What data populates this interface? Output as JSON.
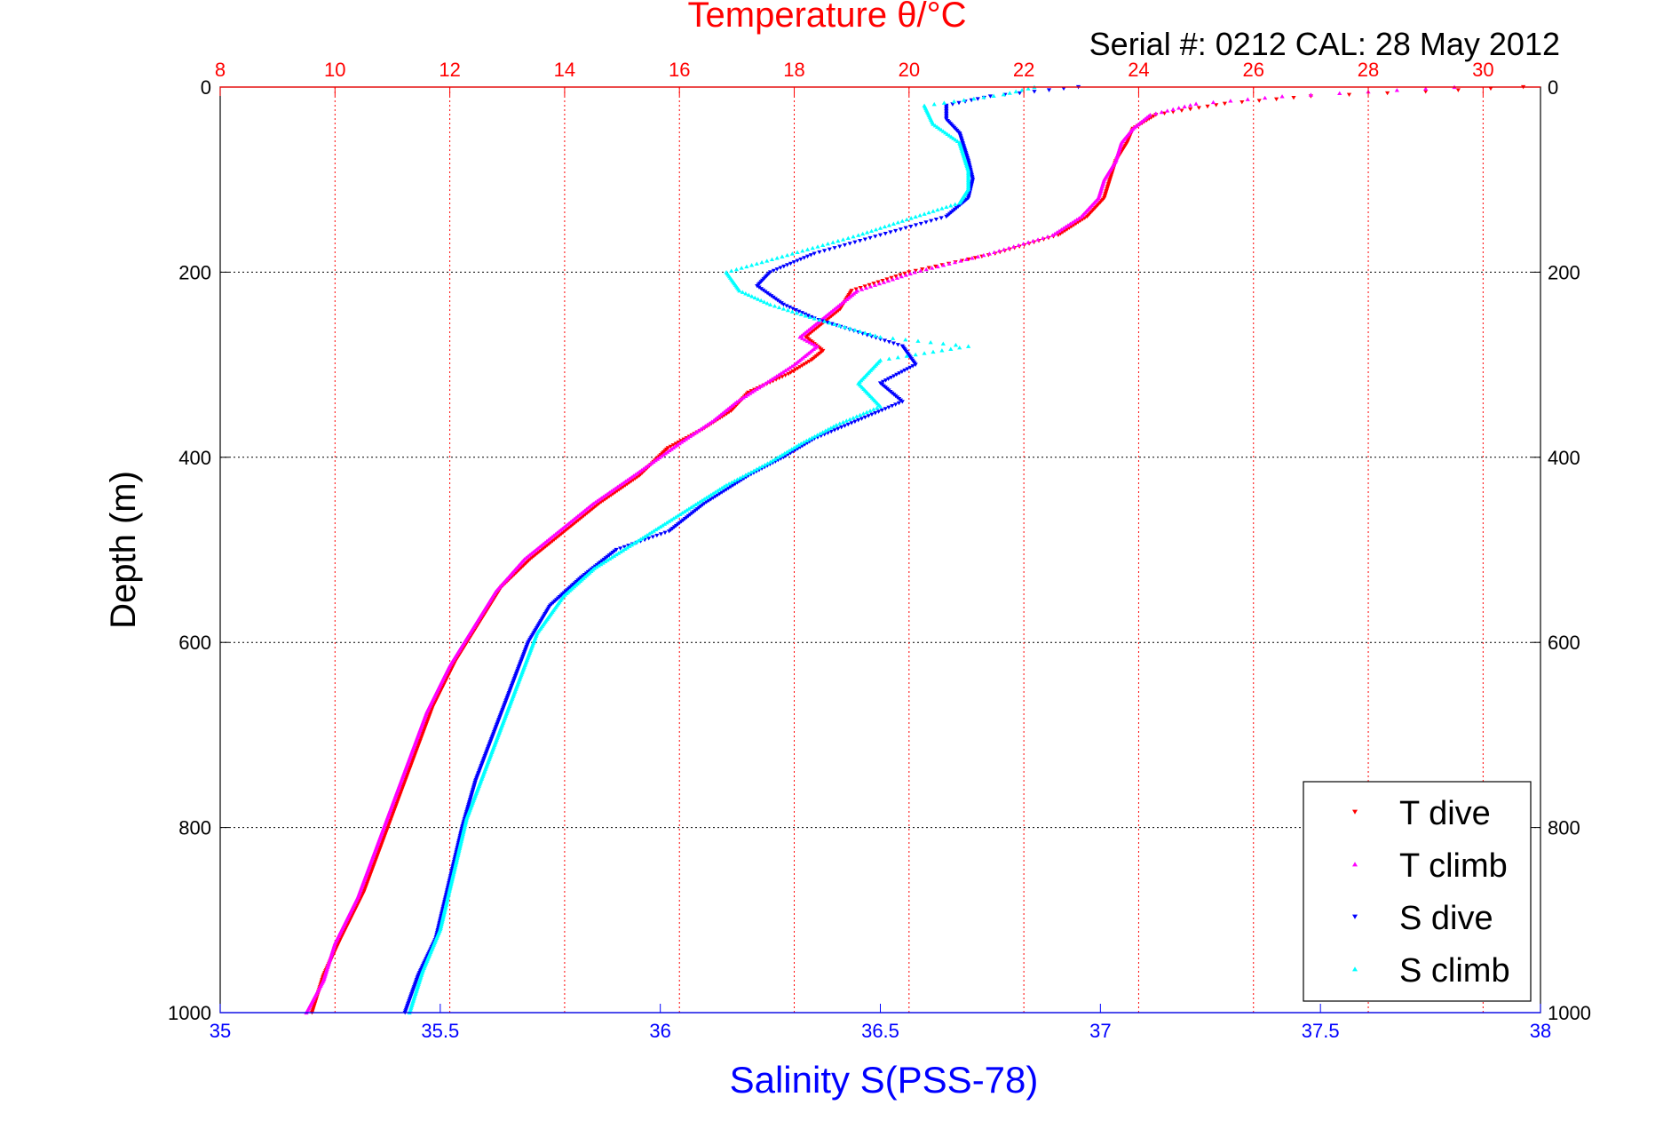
{
  "chart_data": {
    "type": "scatter",
    "title": "Temperature θ/°C",
    "subtitle": "Serial #: 0212  CAL: 28 May 2012",
    "ylabel": "Depth (m)",
    "xlabel_bottom": "Salinity S(PSS-78)",
    "ylim": [
      0,
      1000
    ],
    "y_reversed": true,
    "y_ticks": [
      0,
      200,
      400,
      600,
      800,
      1000
    ],
    "temperature_axis": {
      "position": "top",
      "range": [
        8,
        31
      ],
      "ticks": [
        8,
        10,
        12,
        14,
        16,
        18,
        20,
        22,
        24,
        26,
        28,
        30
      ],
      "color": "#ff0000"
    },
    "salinity_axis": {
      "position": "bottom",
      "range": [
        35,
        38
      ],
      "ticks": [
        35,
        35.5,
        36,
        36.5,
        37,
        37.5,
        38
      ],
      "color": "#0000ff"
    },
    "grid": true,
    "legend_position": "bottom-right",
    "series": [
      {
        "name": "T dive",
        "axis": "temperature",
        "color": "#ff0000",
        "marker": "triangle-down",
        "points": [
          [
            30.7,
            0
          ],
          [
            29.0,
            5
          ],
          [
            27.0,
            10
          ],
          [
            25.5,
            18
          ],
          [
            24.3,
            30
          ],
          [
            23.9,
            45
          ],
          [
            23.8,
            60
          ],
          [
            23.6,
            80
          ],
          [
            23.5,
            100
          ],
          [
            23.4,
            120
          ],
          [
            23.1,
            140
          ],
          [
            22.6,
            160
          ],
          [
            21.5,
            180
          ],
          [
            20.0,
            200
          ],
          [
            19.0,
            220
          ],
          [
            18.8,
            240
          ],
          [
            18.5,
            255
          ],
          [
            18.2,
            270
          ],
          [
            18.5,
            285
          ],
          [
            18.3,
            295
          ],
          [
            17.9,
            310
          ],
          [
            17.2,
            330
          ],
          [
            16.9,
            350
          ],
          [
            16.4,
            370
          ],
          [
            15.8,
            390
          ],
          [
            15.3,
            420
          ],
          [
            14.6,
            450
          ],
          [
            14.0,
            480
          ],
          [
            13.4,
            510
          ],
          [
            12.9,
            540
          ],
          [
            12.5,
            580
          ],
          [
            12.1,
            620
          ],
          [
            11.7,
            670
          ],
          [
            11.4,
            720
          ],
          [
            11.1,
            770
          ],
          [
            10.8,
            820
          ],
          [
            10.5,
            870
          ],
          [
            10.1,
            920
          ],
          [
            9.8,
            960
          ],
          [
            9.6,
            1000
          ]
        ]
      },
      {
        "name": "T climb",
        "axis": "temperature",
        "color": "#ff00ff",
        "marker": "triangle-up",
        "points": [
          [
            29.5,
            0
          ],
          [
            28.0,
            5
          ],
          [
            26.5,
            10
          ],
          [
            25.0,
            18
          ],
          [
            24.2,
            30
          ],
          [
            23.9,
            45
          ],
          [
            23.7,
            60
          ],
          [
            23.6,
            80
          ],
          [
            23.4,
            100
          ],
          [
            23.3,
            120
          ],
          [
            23.0,
            140
          ],
          [
            22.5,
            160
          ],
          [
            21.4,
            180
          ],
          [
            20.1,
            200
          ],
          [
            19.1,
            220
          ],
          [
            18.7,
            240
          ],
          [
            18.4,
            255
          ],
          [
            18.1,
            270
          ],
          [
            18.4,
            280
          ],
          [
            18.0,
            300
          ],
          [
            17.5,
            320
          ],
          [
            17.0,
            340
          ],
          [
            16.6,
            360
          ],
          [
            16.0,
            385
          ],
          [
            15.2,
            420
          ],
          [
            14.5,
            450
          ],
          [
            13.9,
            480
          ],
          [
            13.3,
            510
          ],
          [
            12.8,
            545
          ],
          [
            12.4,
            585
          ],
          [
            12.0,
            625
          ],
          [
            11.6,
            675
          ],
          [
            11.3,
            725
          ],
          [
            11.0,
            775
          ],
          [
            10.7,
            825
          ],
          [
            10.4,
            875
          ],
          [
            10.0,
            925
          ],
          [
            9.8,
            965
          ],
          [
            9.5,
            1000
          ]
        ]
      },
      {
        "name": "S dive",
        "axis": "salinity",
        "color": "#0000ff",
        "marker": "triangle-down",
        "points": [
          [
            36.95,
            0
          ],
          [
            36.85,
            5
          ],
          [
            36.75,
            10
          ],
          [
            36.65,
            20
          ],
          [
            36.65,
            35
          ],
          [
            36.68,
            50
          ],
          [
            36.7,
            80
          ],
          [
            36.71,
            100
          ],
          [
            36.7,
            120
          ],
          [
            36.65,
            140
          ],
          [
            36.5,
            160
          ],
          [
            36.35,
            180
          ],
          [
            36.25,
            200
          ],
          [
            36.22,
            215
          ],
          [
            36.28,
            235
          ],
          [
            36.35,
            250
          ],
          [
            36.45,
            265
          ],
          [
            36.55,
            280
          ],
          [
            36.58,
            300
          ],
          [
            36.5,
            320
          ],
          [
            36.55,
            340
          ],
          [
            36.45,
            360
          ],
          [
            36.35,
            380
          ],
          [
            36.28,
            400
          ],
          [
            36.2,
            420
          ],
          [
            36.1,
            450
          ],
          [
            36.02,
            480
          ],
          [
            35.9,
            500
          ],
          [
            35.82,
            530
          ],
          [
            35.75,
            560
          ],
          [
            35.7,
            600
          ],
          [
            35.66,
            650
          ],
          [
            35.62,
            700
          ],
          [
            35.58,
            750
          ],
          [
            35.55,
            800
          ],
          [
            35.52,
            860
          ],
          [
            35.49,
            920
          ],
          [
            35.45,
            960
          ],
          [
            35.42,
            1000
          ]
        ]
      },
      {
        "name": "S climb",
        "axis": "salinity",
        "color": "#00ffff",
        "marker": "triangle-up",
        "points": [
          [
            36.85,
            0
          ],
          [
            36.78,
            8
          ],
          [
            36.6,
            20
          ],
          [
            36.62,
            40
          ],
          [
            36.68,
            60
          ],
          [
            36.7,
            90
          ],
          [
            36.7,
            110
          ],
          [
            36.68,
            125
          ],
          [
            36.58,
            140
          ],
          [
            36.45,
            160
          ],
          [
            36.3,
            180
          ],
          [
            36.15,
            200
          ],
          [
            36.18,
            220
          ],
          [
            36.25,
            235
          ],
          [
            36.35,
            250
          ],
          [
            36.5,
            270
          ],
          [
            36.7,
            280
          ],
          [
            36.5,
            295
          ],
          [
            36.45,
            320
          ],
          [
            36.5,
            345
          ],
          [
            36.4,
            365
          ],
          [
            36.32,
            385
          ],
          [
            36.25,
            405
          ],
          [
            36.15,
            430
          ],
          [
            36.05,
            460
          ],
          [
            35.95,
            490
          ],
          [
            35.85,
            520
          ],
          [
            35.78,
            550
          ],
          [
            35.72,
            590
          ],
          [
            35.68,
            640
          ],
          [
            35.64,
            690
          ],
          [
            35.6,
            740
          ],
          [
            35.56,
            790
          ],
          [
            35.53,
            850
          ],
          [
            35.5,
            910
          ],
          [
            35.46,
            955
          ],
          [
            35.43,
            1000
          ]
        ]
      }
    ]
  }
}
